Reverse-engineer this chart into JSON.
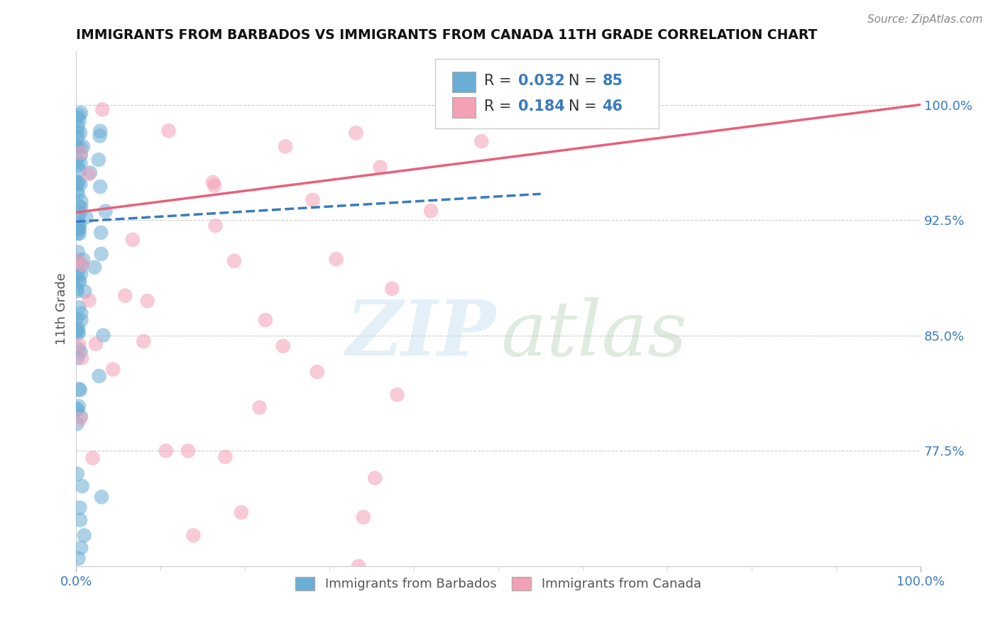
{
  "title": "IMMIGRANTS FROM BARBADOS VS IMMIGRANTS FROM CANADA 11TH GRADE CORRELATION CHART",
  "source": "Source: ZipAtlas.com",
  "ylabel": "11th Grade",
  "ytick_labels": [
    "77.5%",
    "85.0%",
    "92.5%",
    "100.0%"
  ],
  "ytick_values": [
    0.775,
    0.85,
    0.925,
    1.0
  ],
  "xlim": [
    0.0,
    1.0
  ],
  "ylim": [
    0.7,
    1.035
  ],
  "legend_r1": "0.032",
  "legend_n1": "85",
  "legend_r2": "0.184",
  "legend_n2": "46",
  "color_blue": "#6aaed6",
  "color_pink": "#f4a0b5",
  "color_blue_line": "#3a7abf",
  "color_pink_line": "#e8607a",
  "color_blue_text": "#3a7abf",
  "background": "#ffffff"
}
